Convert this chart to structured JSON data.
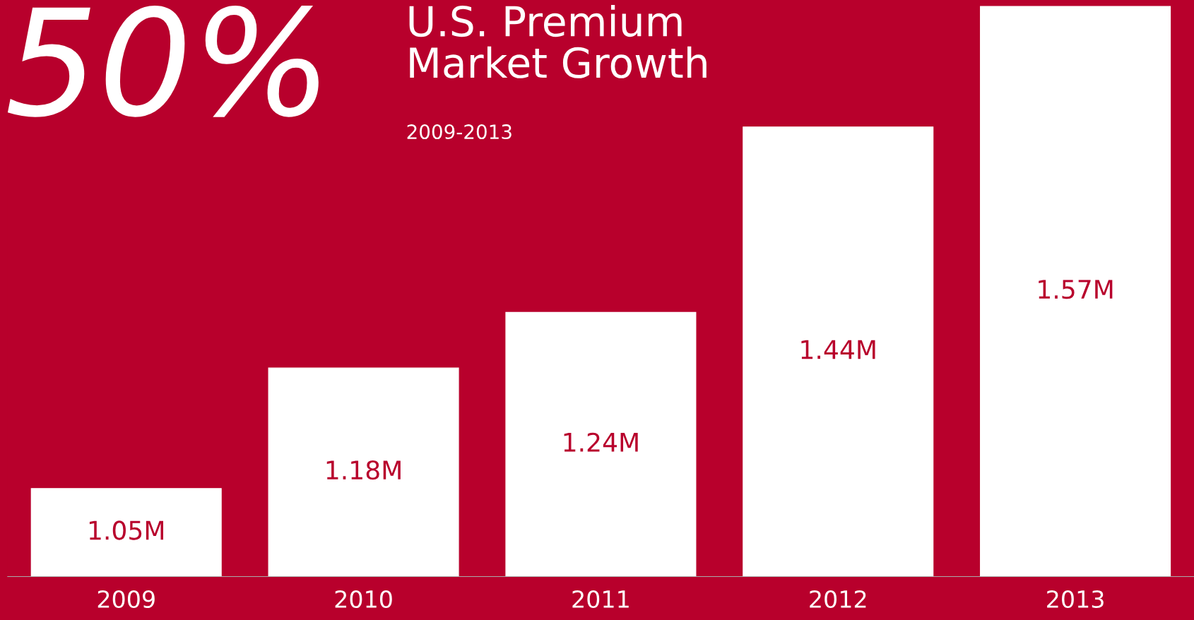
{
  "chart_data": {
    "type": "bar",
    "title": "U.S. Premium\nMarket Growth",
    "subtitle": "2009-2013",
    "annotations": [
      "50%"
    ],
    "categories": [
      "2009",
      "2010",
      "2011",
      "2012",
      "2013"
    ],
    "values": [
      1.05,
      1.18,
      1.24,
      1.44,
      1.57
    ],
    "value_labels": [
      "1.05M",
      "1.18M",
      "1.24M",
      "1.44M",
      "1.57M"
    ],
    "color": "#ffffff",
    "ylim": [
      0.955,
      1.577
    ],
    "grid": false,
    "legend": false
  }
}
